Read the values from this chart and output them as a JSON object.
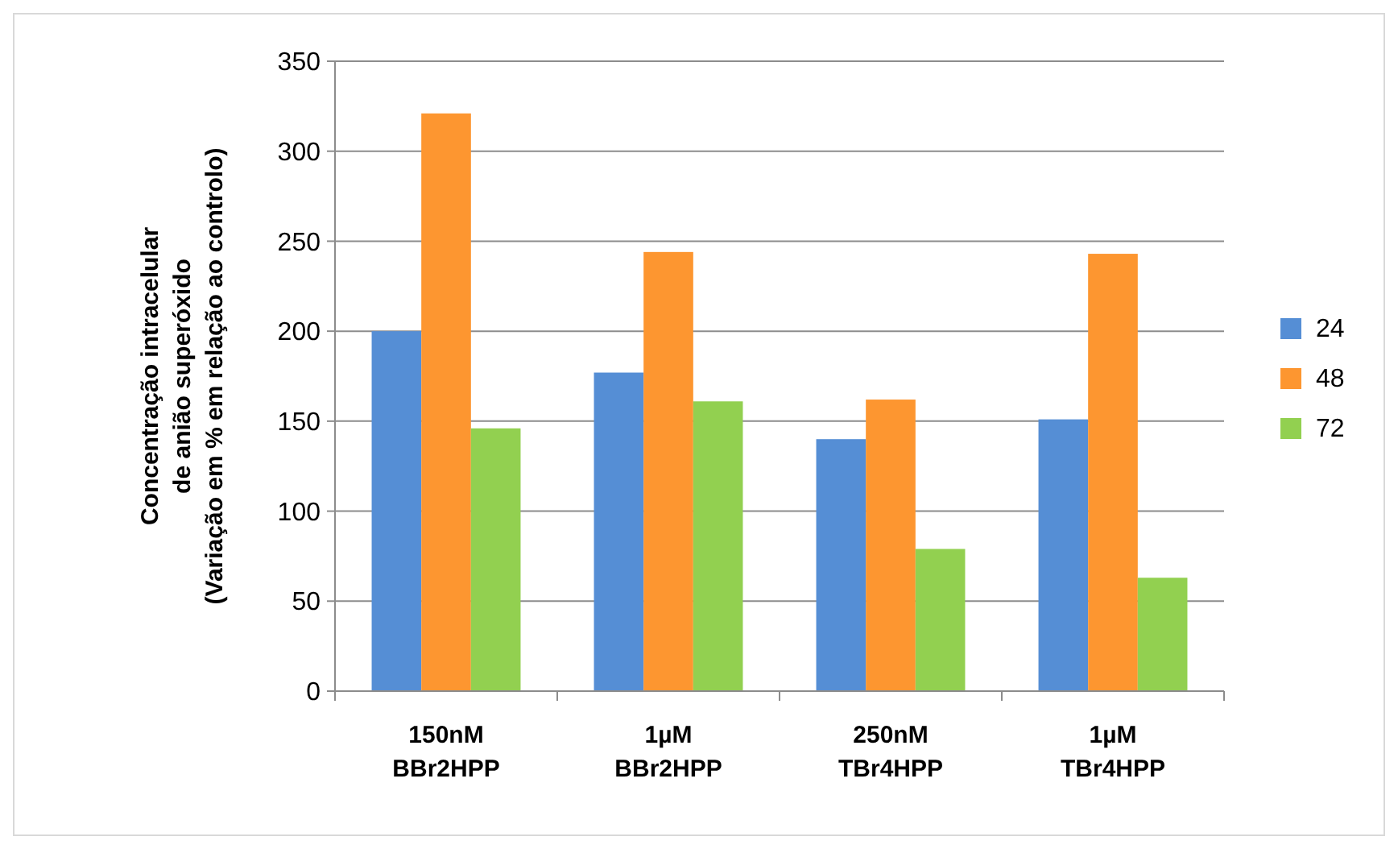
{
  "chart_data": {
    "type": "bar",
    "ylabel": "Concentração intracelular\nde anião superóxido\n(Variação em % em relação ao controlo)",
    "categories": [
      "150nM\nBBr2HPP",
      "1µM\nBBr2HPP",
      "250nM\nTBr4HPP",
      "1µM\nTBr4HPP"
    ],
    "series": [
      {
        "name": "24",
        "color": "#558ed5",
        "values": [
          200,
          177,
          140,
          151
        ]
      },
      {
        "name": "48",
        "color": "#fd9630",
        "values": [
          321,
          244,
          162,
          243
        ]
      },
      {
        "name": "72",
        "color": "#92d050",
        "values": [
          146,
          161,
          79,
          63
        ]
      }
    ],
    "ylim": [
      0,
      350
    ],
    "yticks": [
      0,
      50,
      100,
      150,
      200,
      250,
      300,
      350
    ],
    "grid": "y",
    "legend": "right"
  }
}
